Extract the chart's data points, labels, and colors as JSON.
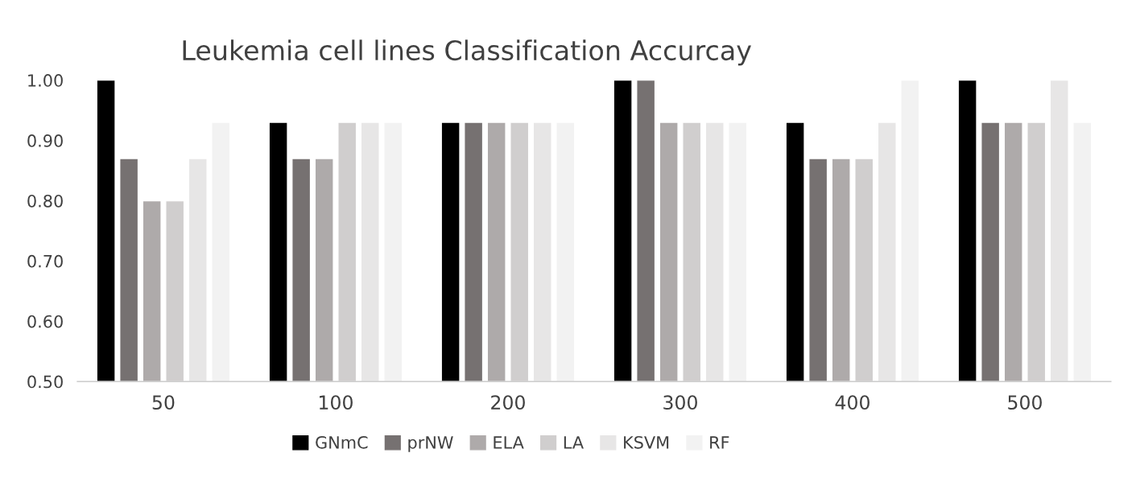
{
  "chart_data": {
    "type": "bar",
    "title": "Leukemia cell lines Classification Accurcay",
    "categories": [
      "50",
      "100",
      "200",
      "300",
      "400",
      "500"
    ],
    "series": [
      {
        "name": "GNmC",
        "color": "#000000",
        "values": [
          1.0,
          0.93,
          0.93,
          1.0,
          0.93,
          1.0
        ]
      },
      {
        "name": "prNW",
        "color": "#767171",
        "values": [
          0.87,
          0.87,
          0.93,
          1.0,
          0.87,
          0.93
        ]
      },
      {
        "name": "ELA",
        "color": "#aeaaaa",
        "values": [
          0.8,
          0.87,
          0.93,
          0.93,
          0.87,
          0.93
        ]
      },
      {
        "name": "LA",
        "color": "#d0cece",
        "values": [
          0.8,
          0.93,
          0.93,
          0.93,
          0.87,
          0.93
        ]
      },
      {
        "name": "KSVM",
        "color": "#e7e6e6",
        "values": [
          0.87,
          0.93,
          0.93,
          0.93,
          0.93,
          1.0
        ]
      },
      {
        "name": "RF",
        "color": "#f2f2f2",
        "values": [
          0.93,
          0.93,
          0.93,
          0.93,
          1.0,
          0.93
        ]
      }
    ],
    "ylim": [
      0.5,
      1.0
    ],
    "yticks": [
      {
        "value": 0.5,
        "label": "0.50"
      },
      {
        "value": 0.6,
        "label": "0.60"
      },
      {
        "value": 0.7,
        "label": "0.70"
      },
      {
        "value": 0.8,
        "label": "0.80"
      },
      {
        "value": 0.9,
        "label": "0.90"
      },
      {
        "value": 1.0,
        "label": "1.00"
      }
    ],
    "grid": false,
    "legend": "bottom"
  }
}
